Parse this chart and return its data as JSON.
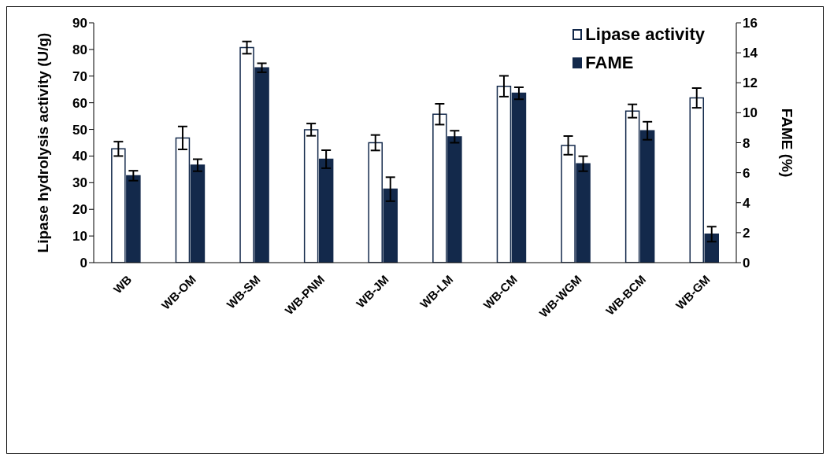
{
  "chart_data": {
    "type": "bar",
    "ylabel": "Lipase hydrolysis activity (U/g)",
    "y2label": "FAME (%)",
    "categories": [
      "WB",
      "WB-OM",
      "WB-SM",
      "WB-PNM",
      "WB-JM",
      "WB-LM",
      "WB-CM",
      "WB-WGM",
      "WB-BCM",
      "WB-GM"
    ],
    "series": [
      {
        "name": "Lipase activity",
        "color": "#ffffff",
        "values": [
          42.7,
          46.8,
          80.7,
          49.9,
          45,
          55.7,
          66.2,
          44,
          56.9,
          61.8
        ],
        "errors": [
          2.7,
          4.3,
          2.3,
          2.3,
          2.9,
          3.9,
          3.9,
          3.5,
          2.5,
          3.7
        ]
      },
      {
        "name": "FAME",
        "color": "#13294b",
        "axis": "y2",
        "values": [
          5.8,
          6.5,
          13.0,
          6.9,
          4.9,
          8.4,
          11.3,
          6.6,
          8.8,
          1.9
        ],
        "errors": [
          0.33,
          0.4,
          0.3,
          0.6,
          0.8,
          0.4,
          0.4,
          0.5,
          0.6,
          0.5
        ]
      }
    ],
    "ylim": [
      0,
      90
    ],
    "yticks": [
      0,
      10,
      20,
      30,
      40,
      50,
      60,
      70,
      80,
      90
    ],
    "y2lim": [
      0,
      16
    ],
    "y2ticks": [
      0,
      2,
      4,
      6,
      8,
      10,
      12,
      14,
      16
    ],
    "legend": "top right",
    "grid": false
  }
}
